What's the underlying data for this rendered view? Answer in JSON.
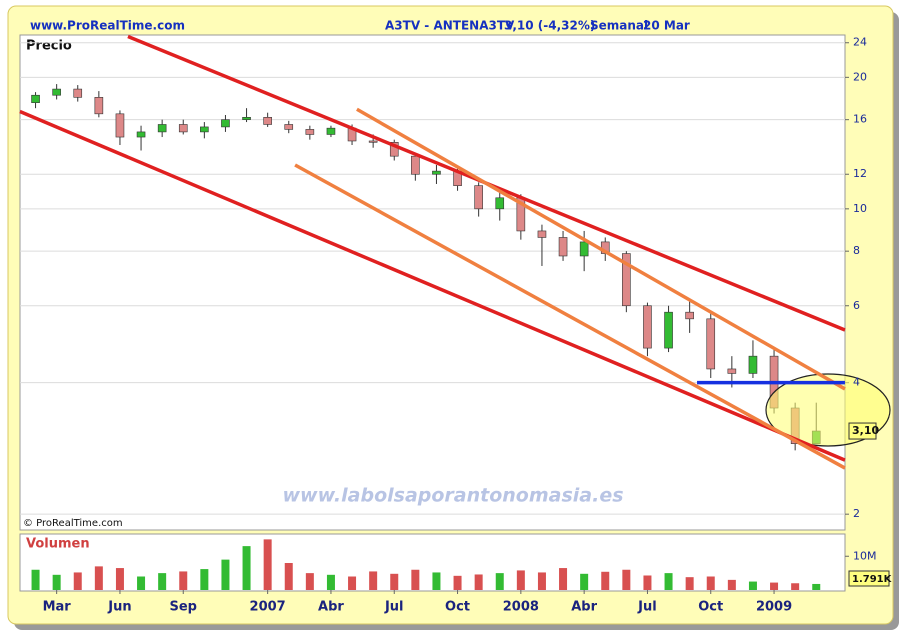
{
  "chart_data": {
    "type": "candlestick",
    "source": "www.ProRealTime.com",
    "symbol": "A3TV - ANTENA3TV",
    "quote": "3,10 (-4,32%)",
    "period": "Semanal",
    "date": "20 Mar",
    "panel_label": "Precio",
    "volume_label": "Volumen",
    "copyright": "© ProRealTime.com",
    "watermark": "www.labolsaporantonomasia.es",
    "categories": [
      null,
      "Mar",
      null,
      null,
      "Jun",
      null,
      null,
      "Sep",
      null,
      null,
      null,
      "2007",
      null,
      null,
      "Abr",
      null,
      null,
      "Jul",
      null,
      null,
      "Oct",
      null,
      null,
      "2008",
      null,
      null,
      "Abr",
      null,
      null,
      "Jul",
      null,
      null,
      "Oct",
      null,
      null,
      "2009",
      null,
      null
    ],
    "open": [
      17.5,
      18.2,
      18.8,
      18.0,
      16.5,
      14.6,
      15.0,
      15.6,
      15.0,
      15.4,
      16.0,
      16.2,
      15.6,
      15.2,
      14.8,
      15.3,
      14.3,
      14.2,
      13.2,
      12.0,
      12.2,
      11.3,
      10.0,
      10.6,
      8.9,
      8.6,
      7.8,
      8.4,
      7.9,
      6.0,
      4.8,
      5.8,
      5.6,
      4.3,
      4.2,
      4.6,
      3.5,
      2.9
    ],
    "high": [
      18.5,
      19.3,
      19.2,
      18.6,
      16.8,
      15.5,
      16.0,
      16.0,
      15.8,
      16.4,
      17.0,
      16.6,
      15.9,
      15.5,
      15.5,
      15.6,
      14.8,
      14.4,
      13.4,
      12.6,
      12.5,
      11.5,
      11.2,
      10.8,
      9.2,
      8.9,
      8.9,
      8.6,
      8.0,
      6.1,
      6.0,
      6.2,
      5.8,
      4.6,
      5.0,
      4.8,
      3.6,
      3.6
    ],
    "low": [
      17.0,
      17.8,
      17.6,
      16.2,
      14.0,
      13.6,
      14.6,
      14.8,
      14.5,
      15.0,
      15.8,
      15.4,
      14.9,
      14.4,
      14.6,
      14.0,
      13.8,
      12.9,
      11.6,
      11.4,
      11.0,
      9.6,
      9.4,
      8.5,
      7.4,
      7.6,
      7.2,
      7.6,
      5.8,
      4.6,
      4.7,
      5.2,
      4.1,
      3.9,
      4.1,
      3.4,
      2.8,
      2.9
    ],
    "close": [
      18.2,
      18.8,
      18.0,
      16.5,
      14.6,
      15.0,
      15.6,
      15.0,
      15.4,
      16.0,
      16.2,
      15.6,
      15.2,
      14.8,
      15.3,
      14.3,
      14.2,
      13.2,
      12.0,
      12.2,
      11.3,
      10.0,
      10.6,
      8.9,
      8.6,
      7.8,
      8.4,
      7.9,
      6.0,
      4.8,
      5.8,
      5.6,
      4.3,
      4.2,
      4.6,
      3.5,
      2.9,
      3.1
    ],
    "volume": [
      6000000,
      4500000,
      5200000,
      7000000,
      6500000,
      4000000,
      5000000,
      5500000,
      6200000,
      9000000,
      13000000,
      15000000,
      8000000,
      5000000,
      4500000,
      4000000,
      5500000,
      4800000,
      6000000,
      5200000,
      4200000,
      4600000,
      5000000,
      5800000,
      5200000,
      6500000,
      4800000,
      5400000,
      6000000,
      4300000,
      5000000,
      3800000,
      4000000,
      3000000,
      2500000,
      2200000,
      2000000,
      1791000
    ],
    "up_color": "#33bb33",
    "down_color": "#dd8888",
    "ylim": [
      1.84,
      25
    ],
    "log_scale": true,
    "yticks": [
      2,
      4,
      6,
      8,
      10,
      12,
      16,
      20,
      24
    ],
    "grid": true,
    "volume_ylim": [
      0,
      16000000
    ],
    "volume_yticks": [
      {
        "value": 10000000,
        "label": "10M"
      }
    ],
    "last_price": {
      "value": 3.1,
      "label": "3,10"
    },
    "last_volume": {
      "value": 1791000,
      "label": "1.791K"
    },
    "trend_lines": [
      {
        "color": "#e02020",
        "x": [
          4.38,
          38.36
        ],
        "y": [
          24.8,
          5.28
        ]
      },
      {
        "color": "#e02020",
        "x": [
          -0.74,
          38.36
        ],
        "y": [
          16.7,
          2.66
        ]
      },
      {
        "color": "#f08040",
        "x": [
          15.23,
          38.36
        ],
        "y": [
          16.9,
          3.87
        ]
      },
      {
        "color": "#f08040",
        "x": [
          12.3,
          38.36
        ],
        "y": [
          12.6,
          2.55
        ]
      },
      {
        "color": "#1530e0",
        "x": [
          31.35,
          38.36
        ],
        "y": [
          4,
          4
        ]
      }
    ]
  }
}
